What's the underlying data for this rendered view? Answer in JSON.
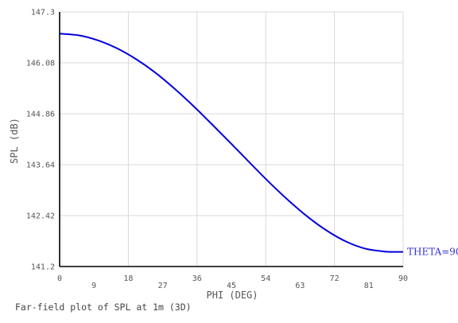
{
  "chart_data": {
    "type": "line",
    "xlabel": "PHI (DEG)",
    "ylabel": "SPL (dB)",
    "xlim": [
      0,
      90
    ],
    "ylim": [
      141.2,
      147.3
    ],
    "x_ticks": [
      "0",
      "9",
      "18",
      "27",
      "36",
      "45",
      "54",
      "63",
      "72",
      "81",
      "90"
    ],
    "y_ticks": [
      "141.2",
      "142.42",
      "143.64",
      "144.86",
      "146.08",
      "147.3"
    ],
    "grid": true,
    "series": [
      {
        "name": "THETA=90",
        "color": "#0000dd",
        "x": [
          0,
          5,
          10,
          15,
          20,
          25,
          30,
          35,
          40,
          45,
          50,
          55,
          60,
          65,
          70,
          75,
          80,
          85,
          88,
          90
        ],
        "y": [
          146.78,
          146.74,
          146.62,
          146.43,
          146.17,
          145.85,
          145.47,
          145.05,
          144.6,
          144.14,
          143.67,
          143.21,
          142.78,
          142.39,
          142.06,
          141.8,
          141.63,
          141.56,
          141.55,
          141.55
        ]
      }
    ],
    "caption": "Far-field plot of SPL at 1m (3D)"
  }
}
